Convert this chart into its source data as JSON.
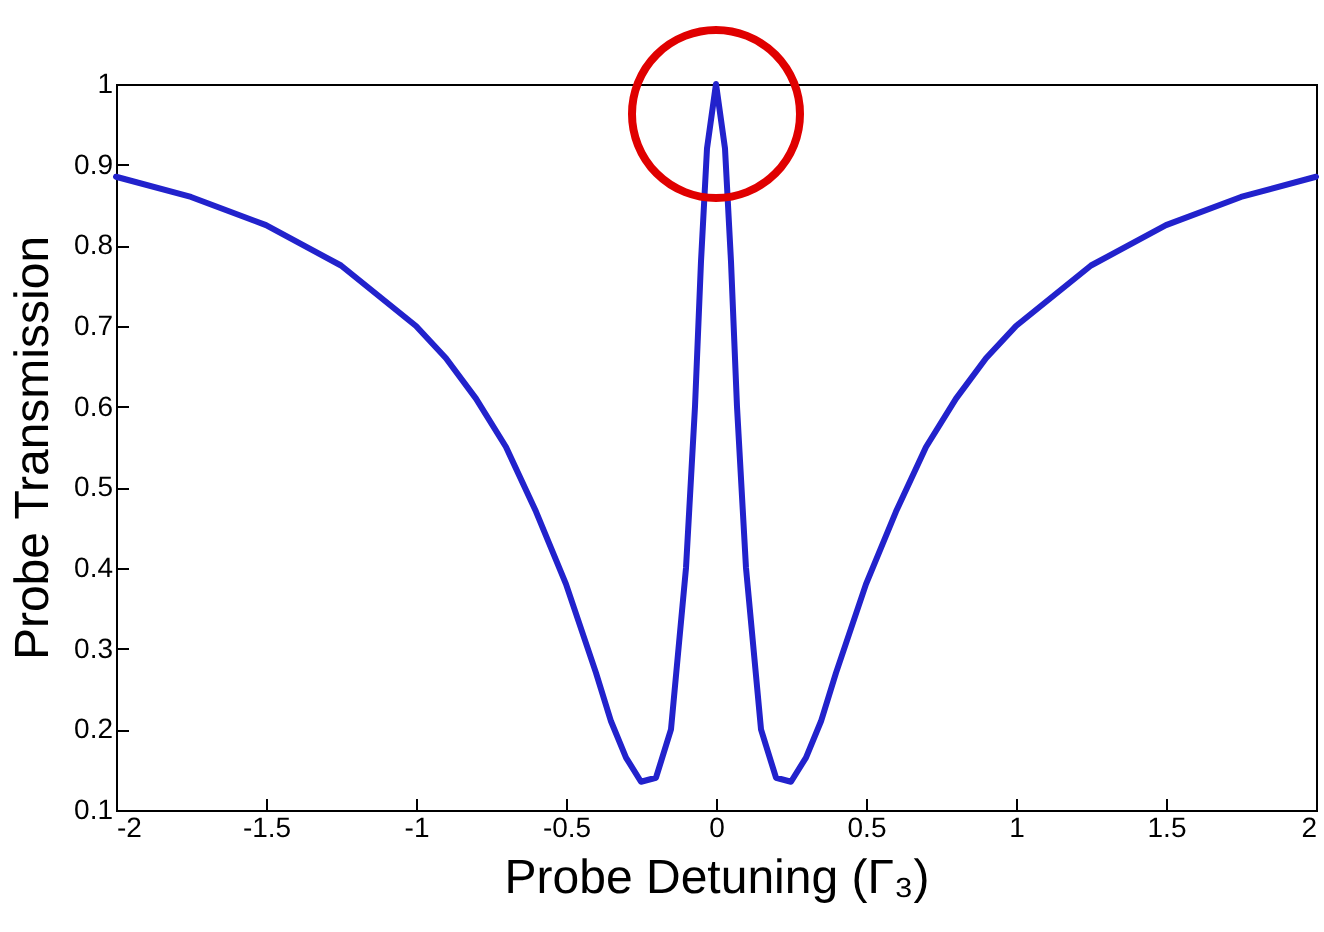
{
  "chart_data": {
    "type": "line",
    "xlabel": "Probe Detuning (Γ₃)",
    "ylabel": "Probe Transmission",
    "x": [
      -2,
      -1.75,
      -1.5,
      -1.25,
      -1,
      -0.9,
      -0.8,
      -0.7,
      -0.6,
      -0.5,
      -0.4,
      -0.35,
      -0.3,
      -0.25,
      -0.2,
      -0.15,
      -0.1,
      -0.07,
      -0.05,
      -0.03,
      0,
      0.03,
      0.05,
      0.07,
      0.1,
      0.15,
      0.2,
      0.25,
      0.3,
      0.35,
      0.4,
      0.5,
      0.6,
      0.7,
      0.8,
      0.9,
      1,
      1.25,
      1.5,
      1.75,
      2
    ],
    "series": [
      {
        "color": "#2222cc",
        "values": [
          0.885,
          0.86,
          0.825,
          0.775,
          0.7,
          0.66,
          0.61,
          0.55,
          0.47,
          0.38,
          0.27,
          0.21,
          0.165,
          0.135,
          0.14,
          0.2,
          0.4,
          0.6,
          0.78,
          0.92,
          1.0,
          0.92,
          0.78,
          0.6,
          0.4,
          0.2,
          0.14,
          0.135,
          0.165,
          0.21,
          0.27,
          0.38,
          0.47,
          0.55,
          0.61,
          0.66,
          0.7,
          0.775,
          0.825,
          0.86,
          0.885
        ]
      }
    ],
    "xlim": [
      -2,
      2
    ],
    "xticks": [
      -2,
      -1.5,
      -1,
      -0.5,
      0,
      0.5,
      1,
      1.5,
      2
    ],
    "ylim": [
      0.1,
      1
    ],
    "yticks": [
      0.1,
      0.2,
      0.3,
      0.4,
      0.5,
      0.6,
      0.7,
      0.8,
      0.9,
      1
    ],
    "grid": false,
    "marker": "none",
    "line_style": "solid"
  }
}
